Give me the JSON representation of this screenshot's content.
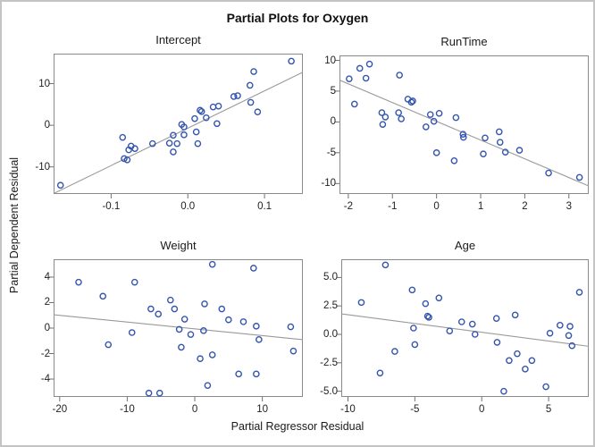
{
  "figure": {
    "title": "Partial Plots for Oxygen",
    "shared_y_label": "Partial Dependent Residual",
    "shared_x_label": "Partial Regressor Residual"
  },
  "style": {
    "marker_color": "#3355b0",
    "fit_line_color": "#9a9a9a",
    "frame_color": "#8a8a8a",
    "tick_color": "#6f6f6f",
    "border_color": "#c4c4c4",
    "marker_shape": "open-circle"
  },
  "chart_data": [
    {
      "type": "scatter",
      "title": "Intercept",
      "xlim": [
        -0.175,
        0.15
      ],
      "ylim": [
        -16.5,
        17.2
      ],
      "xticks": [
        -0.1,
        0.0,
        0.1
      ],
      "xtick_labels": [
        "-0.1",
        "0.0",
        "0.1"
      ],
      "yticks": [
        -10,
        0,
        10
      ],
      "ytick_labels": [
        "-10",
        "0",
        "10"
      ],
      "grid": false,
      "fit_line": [
        [
          -0.175,
          -16.4
        ],
        [
          0.15,
          12.75
        ]
      ],
      "points": [
        [
          -0.166,
          -14.4
        ],
        [
          -0.085,
          -2.9
        ],
        [
          -0.083,
          -8.0
        ],
        [
          -0.079,
          -8.3
        ],
        [
          -0.077,
          -5.9
        ],
        [
          -0.074,
          -5.0
        ],
        [
          -0.069,
          -5.6
        ],
        [
          -0.046,
          -4.4
        ],
        [
          -0.024,
          -4.3
        ],
        [
          -0.019,
          -2.4
        ],
        [
          -0.019,
          -6.4
        ],
        [
          -0.014,
          -4.4
        ],
        [
          -0.008,
          0.2
        ],
        [
          -0.005,
          -0.4
        ],
        [
          -0.005,
          -2.3
        ],
        [
          0.009,
          1.6
        ],
        [
          0.011,
          -1.6
        ],
        [
          0.013,
          -4.4
        ],
        [
          0.016,
          3.6
        ],
        [
          0.018,
          3.3
        ],
        [
          0.024,
          1.8
        ],
        [
          0.033,
          4.4
        ],
        [
          0.04,
          4.6
        ],
        [
          0.038,
          0.4
        ],
        [
          0.06,
          6.9
        ],
        [
          0.065,
          7.1
        ],
        [
          0.081,
          9.6
        ],
        [
          0.082,
          5.5
        ],
        [
          0.086,
          12.9
        ],
        [
          0.091,
          3.2
        ],
        [
          0.135,
          15.4
        ]
      ]
    },
    {
      "type": "scatter",
      "title": "RunTime",
      "xlim": [
        -2.2,
        3.45
      ],
      "ylim": [
        -11.7,
        10.8
      ],
      "xticks": [
        -2,
        -1,
        0,
        1,
        2,
        3
      ],
      "xtick_labels": [
        "-2",
        "-1",
        "0",
        "1",
        "2",
        "3"
      ],
      "yticks": [
        -10,
        -5,
        0,
        5,
        10
      ],
      "ytick_labels": [
        "-10",
        "-5",
        "0",
        "5",
        "10"
      ],
      "grid": false,
      "fit_line": [
        [
          -2.2,
          6.8
        ],
        [
          3.45,
          -10.4
        ]
      ],
      "points": [
        [
          -1.98,
          7.0
        ],
        [
          -1.86,
          2.9
        ],
        [
          -1.74,
          8.7
        ],
        [
          -1.6,
          7.1
        ],
        [
          -1.52,
          9.4
        ],
        [
          -1.24,
          1.5
        ],
        [
          -1.16,
          0.8
        ],
        [
          -1.22,
          -0.4
        ],
        [
          -0.86,
          1.5
        ],
        [
          -0.8,
          0.5
        ],
        [
          -0.84,
          7.6
        ],
        [
          -0.65,
          3.7
        ],
        [
          -0.57,
          3.2
        ],
        [
          -0.54,
          3.4
        ],
        [
          -0.24,
          -0.8
        ],
        [
          -0.14,
          1.2
        ],
        [
          -0.06,
          0.1
        ],
        [
          0.06,
          1.4
        ],
        [
          0.0,
          -5.0
        ],
        [
          0.4,
          -6.3
        ],
        [
          0.44,
          0.7
        ],
        [
          0.6,
          -2.0
        ],
        [
          0.61,
          -2.5
        ],
        [
          1.1,
          -2.6
        ],
        [
          1.42,
          -1.6
        ],
        [
          1.44,
          -3.3
        ],
        [
          1.06,
          -5.2
        ],
        [
          1.56,
          -4.9
        ],
        [
          1.88,
          -4.6
        ],
        [
          2.54,
          -8.3
        ],
        [
          3.24,
          -9.0
        ]
      ]
    },
    {
      "type": "scatter",
      "title": "Weight",
      "xlim": [
        -20.9,
        16.0
      ],
      "ylim": [
        -5.4,
        5.4
      ],
      "xticks": [
        -20,
        -10,
        0,
        10
      ],
      "xtick_labels": [
        "-20",
        "-10",
        "0",
        "10"
      ],
      "yticks": [
        -4,
        -2,
        0,
        2,
        4
      ],
      "ytick_labels": [
        "-4",
        "-2",
        "0",
        "2",
        "4"
      ],
      "grid": false,
      "fit_line": [
        [
          -20.9,
          1.05
        ],
        [
          16.0,
          -0.91
        ]
      ],
      "points": [
        [
          -17.2,
          3.6
        ],
        [
          -13.6,
          2.5
        ],
        [
          -12.8,
          -1.3
        ],
        [
          -9.3,
          -0.35
        ],
        [
          -8.9,
          3.6
        ],
        [
          -6.8,
          -5.1
        ],
        [
          -6.5,
          1.5
        ],
        [
          -5.4,
          1.1
        ],
        [
          -5.2,
          -5.1
        ],
        [
          -3.6,
          2.2
        ],
        [
          -3.0,
          1.5
        ],
        [
          -2.3,
          -0.1
        ],
        [
          -2.0,
          -1.5
        ],
        [
          -1.5,
          0.7
        ],
        [
          -0.6,
          -0.5
        ],
        [
          0.8,
          -2.4
        ],
        [
          1.3,
          -0.2
        ],
        [
          1.45,
          1.9
        ],
        [
          1.9,
          -4.5
        ],
        [
          2.6,
          -2.1
        ],
        [
          2.6,
          5.0
        ],
        [
          4.0,
          1.5
        ],
        [
          5.0,
          0.65
        ],
        [
          6.5,
          -3.6
        ],
        [
          7.2,
          0.5
        ],
        [
          8.7,
          4.7
        ],
        [
          9.1,
          0.15
        ],
        [
          9.1,
          -3.6
        ],
        [
          9.5,
          -0.9
        ],
        [
          14.2,
          0.1
        ],
        [
          14.6,
          -1.8
        ]
      ]
    },
    {
      "type": "scatter",
      "title": "Age",
      "xlim": [
        -10.5,
        8.0
      ],
      "ylim": [
        -5.5,
        6.6
      ],
      "xticks": [
        -10,
        -5,
        0,
        5
      ],
      "xtick_labels": [
        "-10",
        "-5",
        "0",
        "5"
      ],
      "yticks": [
        -5.0,
        -2.5,
        0.0,
        2.5,
        5.0
      ],
      "ytick_labels": [
        "-5.0",
        "-2.5",
        "0.0",
        "2.5",
        "5.0"
      ],
      "grid": false,
      "fit_line": [
        [
          -10.5,
          1.8
        ],
        [
          8.0,
          -1.05
        ]
      ],
      "points": [
        [
          -9.0,
          2.8
        ],
        [
          -7.6,
          -3.4
        ],
        [
          -7.2,
          6.1
        ],
        [
          -6.5,
          -1.5
        ],
        [
          -5.2,
          3.9
        ],
        [
          -5.1,
          0.55
        ],
        [
          -5.0,
          -0.9
        ],
        [
          -4.2,
          2.7
        ],
        [
          -4.05,
          1.6
        ],
        [
          -3.95,
          1.5
        ],
        [
          -3.2,
          3.2
        ],
        [
          -2.4,
          0.3
        ],
        [
          -1.5,
          1.1
        ],
        [
          -0.7,
          0.9
        ],
        [
          -0.5,
          0.0
        ],
        [
          1.1,
          1.4
        ],
        [
          1.15,
          -0.7
        ],
        [
          1.65,
          -5.0
        ],
        [
          2.05,
          -2.3
        ],
        [
          2.5,
          1.7
        ],
        [
          2.65,
          -1.7
        ],
        [
          3.25,
          -3.05
        ],
        [
          3.75,
          -2.3
        ],
        [
          4.8,
          -4.6
        ],
        [
          5.1,
          0.1
        ],
        [
          5.85,
          0.8
        ],
        [
          6.5,
          -0.1
        ],
        [
          6.6,
          0.7
        ],
        [
          6.75,
          -1.0
        ],
        [
          7.3,
          3.7
        ]
      ]
    }
  ]
}
